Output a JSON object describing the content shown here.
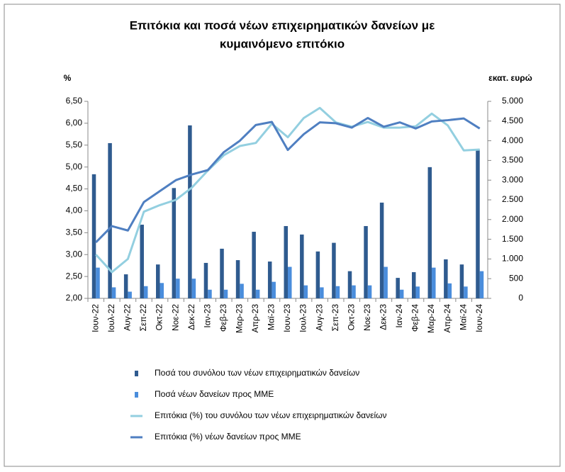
{
  "chart_data": {
    "type": "bar-line",
    "title": [
      "Επιτόκια και ποσά νέων επιχειρηματικών δανείων με",
      "κυμαινόμενο επιτόκιο"
    ],
    "y_label": "%",
    "y2_label": "εκατ. ευρώ",
    "categories": [
      "Ιουν-22",
      "Ιουλ-22",
      "Αυγ-22",
      "Σεπ-22",
      "Οκτ-22",
      "Νοε-22",
      "Δεκ-22",
      "Ιαν-23",
      "Φεβ-23",
      "Μαρ-23",
      "Απρ-23",
      "Μαϊ-23",
      "Ιουν-23",
      "Ιουλ-23",
      "Αυγ-23",
      "Σεπ-23",
      "Οκτ-23",
      "Νοε-23",
      "Δεκ-23",
      "Ιαν-24",
      "Φεβ-24",
      "Μαρ-24",
      "Απρ-24",
      "Μαϊ-24",
      "Ιουν-24"
    ],
    "series": [
      {
        "name": "Ποσά του συνόλου των νέων επιχειρηματικών δανείων",
        "kind": "bar",
        "axis": "y2",
        "color": "#2f5b8f",
        "values": [
          3150,
          3940,
          610,
          1870,
          860,
          2800,
          4390,
          900,
          1260,
          970,
          1690,
          935,
          1835,
          1620,
          1190,
          1410,
          690,
          1835,
          2430,
          520,
          665,
          3330,
          990,
          860,
          3780
        ]
      },
      {
        "name": "Ποσά νέων δανείων προς ΜΜΕ",
        "kind": "bar",
        "axis": "y2",
        "color": "#4a8ddc",
        "values": [
          780,
          280,
          170,
          310,
          390,
          500,
          500,
          220,
          220,
          370,
          220,
          420,
          800,
          330,
          280,
          310,
          330,
          330,
          800,
          220,
          300,
          780,
          380,
          300,
          690
        ]
      },
      {
        "name": "Επιτόκια (%) του συνόλου των νέων επιχειρηματικών δανείων",
        "kind": "line",
        "axis": "y",
        "color": "#93cfe0",
        "values": [
          3.0,
          2.6,
          2.9,
          3.98,
          4.13,
          4.25,
          4.53,
          4.92,
          5.27,
          5.48,
          5.55,
          5.99,
          5.68,
          6.12,
          6.35,
          6.02,
          5.92,
          6.03,
          5.9,
          5.9,
          5.93,
          6.22,
          5.95,
          5.38,
          5.4
        ]
      },
      {
        "name": "Επιτόκια (%) νέων δανείων προς ΜΜΕ",
        "kind": "line",
        "axis": "y",
        "color": "#4f7fc1",
        "values": [
          3.28,
          3.65,
          3.55,
          4.2,
          4.45,
          4.7,
          4.83,
          4.93,
          5.34,
          5.6,
          5.96,
          6.03,
          5.39,
          5.75,
          6.02,
          6.0,
          5.9,
          6.12,
          5.92,
          6.02,
          5.88,
          6.04,
          6.07,
          6.11,
          5.88
        ]
      }
    ],
    "ylim": [
      2,
      6.5
    ],
    "yticks": [
      {
        "value": 2,
        "label": "2,00"
      },
      {
        "value": 2.5,
        "label": "2,50"
      },
      {
        "value": 3,
        "label": "3,00"
      },
      {
        "value": 3.5,
        "label": "3,50"
      },
      {
        "value": 4,
        "label": "4,00"
      },
      {
        "value": 4.5,
        "label": "4,50"
      },
      {
        "value": 5,
        "label": "5,00"
      },
      {
        "value": 5.5,
        "label": "5,50"
      },
      {
        "value": 6,
        "label": "6,00"
      },
      {
        "value": 6.5,
        "label": "6,50"
      }
    ],
    "y2lim": [
      0,
      5000
    ],
    "y2ticks": [
      0,
      500,
      {
        "value": 1000,
        "label": "1.000"
      },
      {
        "value": 1500,
        "label": "1.500"
      },
      {
        "value": 2000,
        "label": "2.000"
      },
      {
        "value": 2500,
        "label": "2.500"
      },
      {
        "value": 3000,
        "label": "3.000"
      },
      {
        "value": 3500,
        "label": "3.500"
      },
      {
        "value": 4000,
        "label": "4.000"
      },
      {
        "value": 4500,
        "label": "4.500"
      },
      {
        "value": 5000,
        "label": "5.000"
      }
    ]
  }
}
